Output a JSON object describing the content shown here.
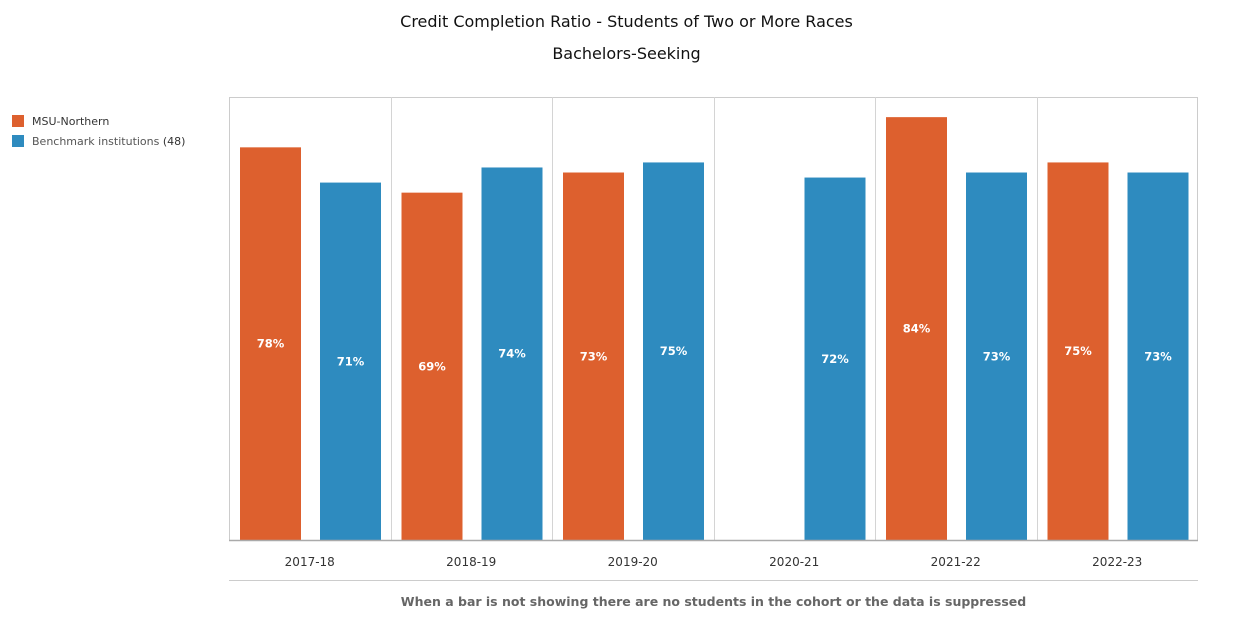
{
  "chart_data": {
    "type": "bar",
    "title": "Credit Completion Ratio - Students of Two or More Races",
    "subtitle": "Bachelors-Seeking",
    "categories": [
      "2017-18",
      "2018-19",
      "2019-20",
      "2020-21",
      "2021-22",
      "2022-23"
    ],
    "series": [
      {
        "name": "MSU-Northern",
        "color": "#dd602e",
        "values": [
          78,
          69,
          73,
          null,
          84,
          75
        ]
      },
      {
        "name": "Benchmark institutions",
        "count_label": "(48)",
        "color": "#2e8bbf",
        "values": [
          71,
          74,
          75,
          72,
          73,
          73
        ]
      }
    ],
    "ylim": [
      0,
      88
    ],
    "value_suffix": "%",
    "legend": "top-left",
    "grid": false
  },
  "footer_note": "When a bar is not showing there are no students in the cohort or the data is suppressed"
}
